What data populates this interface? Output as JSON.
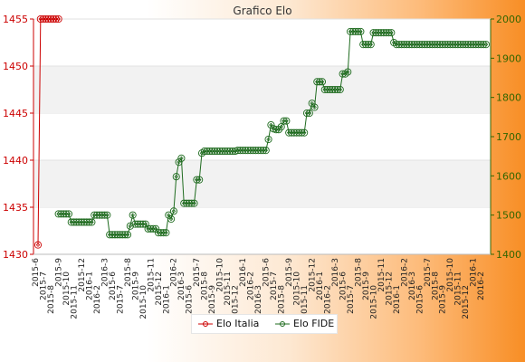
{
  "chart_data": {
    "type": "line",
    "title": "Grafico Elo",
    "xlabel": "",
    "ylabel": "",
    "grid": true,
    "legend_placement": "bottom-center",
    "y_left": {
      "ylim": [
        1430,
        1455
      ],
      "ticks": [
        "1430",
        "1435",
        "1440",
        "1445",
        "1450",
        "1455"
      ],
      "color": "#cc0000"
    },
    "y_right": {
      "ylim": [
        1400,
        2000
      ],
      "ticks": [
        "1400",
        "1500",
        "1600",
        "1700",
        "1800",
        "1900",
        "2000"
      ],
      "color": "#336600"
    },
    "x_tick_labels": [
      "2015-6",
      "2015-7",
      "2015-8",
      "2015-9",
      "2015-10",
      "2015-11",
      "2015-12",
      "2016-1",
      "2016-2",
      "2016-3"
    ],
    "series": [
      {
        "name": "Elo Italia",
        "axis": "left",
        "color": "#cc0000",
        "values": [
          1431,
          1455,
          1455,
          1455,
          1455,
          1455,
          1455,
          1455,
          1455
        ]
      },
      {
        "name": "Elo FIDE",
        "axis": "right",
        "color": "#1f6b1f",
        "start_index": 8,
        "values": [
          1503,
          1503,
          1503,
          1503,
          1503,
          1482,
          1482,
          1482,
          1482,
          1482,
          1482,
          1482,
          1482,
          1482,
          1500,
          1500,
          1500,
          1500,
          1500,
          1500,
          1450,
          1450,
          1450,
          1450,
          1450,
          1450,
          1450,
          1450,
          1472,
          1500,
          1477,
          1477,
          1477,
          1477,
          1477,
          1465,
          1465,
          1465,
          1465,
          1455,
          1455,
          1455,
          1455,
          1500,
          1490,
          1510,
          1598,
          1635,
          1645,
          1530,
          1530,
          1530,
          1530,
          1530,
          1590,
          1590,
          1658,
          1663,
          1663,
          1663,
          1663,
          1663,
          1663,
          1663,
          1663,
          1663,
          1663,
          1663,
          1663,
          1663,
          1665,
          1665,
          1665,
          1665,
          1665,
          1665,
          1665,
          1665,
          1665,
          1665,
          1665,
          1665,
          1693,
          1730,
          1720,
          1718,
          1718,
          1725,
          1740,
          1740,
          1710,
          1710,
          1710,
          1710,
          1710,
          1710,
          1710,
          1760,
          1760,
          1785,
          1775,
          1840,
          1840,
          1840,
          1820,
          1820,
          1820,
          1820,
          1820,
          1820,
          1820,
          1860,
          1860,
          1865,
          1968,
          1968,
          1968,
          1968,
          1968,
          1935,
          1935,
          1935,
          1935,
          1965,
          1965,
          1965,
          1965,
          1965,
          1965,
          1965,
          1965,
          1940,
          1935,
          1935,
          1935,
          1935,
          1935,
          1935,
          1935,
          1935,
          1935,
          1935,
          1935,
          1935,
          1935,
          1935,
          1935,
          1935,
          1935,
          1935,
          1935,
          1935,
          1935,
          1935,
          1935,
          1935,
          1935,
          1935,
          1935,
          1935,
          1935,
          1935,
          1935,
          1935,
          1935,
          1935,
          1935,
          1935
        ]
      }
    ]
  }
}
